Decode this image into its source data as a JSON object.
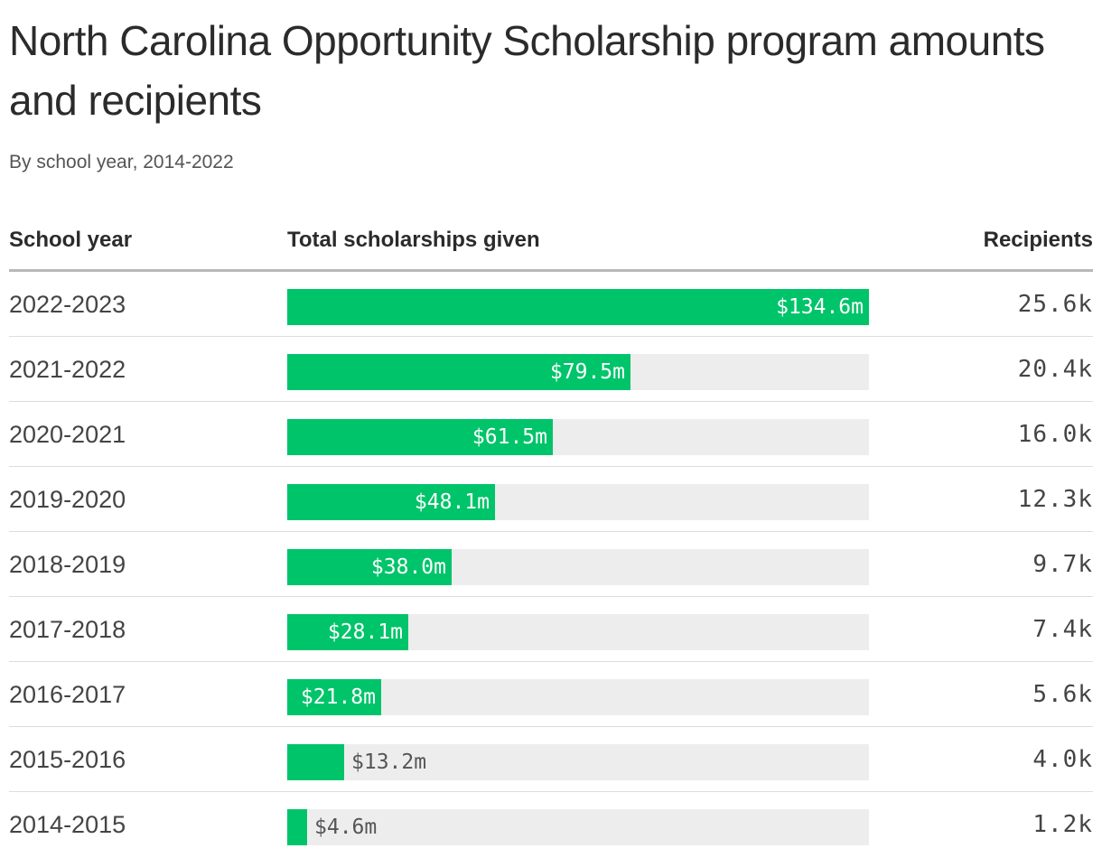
{
  "title": "North Carolina Opportunity Scholarship program amounts and recipients",
  "subtitle": "By school year, 2014-2022",
  "columns": {
    "year": "School year",
    "amount": "Total scholarships given",
    "recipients": "Recipients"
  },
  "colors": {
    "bar": "#00c46a",
    "track": "#ededed",
    "header_rule": "#b8b8b8"
  },
  "chart_data": {
    "type": "bar",
    "orientation": "horizontal",
    "title": "North Carolina Opportunity Scholarship program amounts and recipients",
    "subtitle": "By school year, 2014-2022",
    "xlim": [
      0,
      134.6
    ],
    "categories": [
      "2022-2023",
      "2021-2022",
      "2020-2021",
      "2019-2020",
      "2018-2019",
      "2017-2018",
      "2016-2017",
      "2015-2016",
      "2014-2015"
    ],
    "series": [
      {
        "name": "Total scholarships given",
        "values": [
          134.6,
          79.5,
          61.5,
          48.1,
          38.0,
          28.1,
          21.8,
          13.2,
          4.6
        ],
        "labels": [
          "$134.6m",
          "$79.5m",
          "$61.5m",
          "$48.1m",
          "$38.0m",
          "$28.1m",
          "$21.8m",
          "$13.2m",
          "$4.6m"
        ]
      }
    ],
    "recipients": [
      "25.6k",
      "20.4k",
      "16.0k",
      "12.3k",
      "9.7k",
      "7.4k",
      "5.6k",
      "4.0k",
      "1.2k"
    ]
  }
}
